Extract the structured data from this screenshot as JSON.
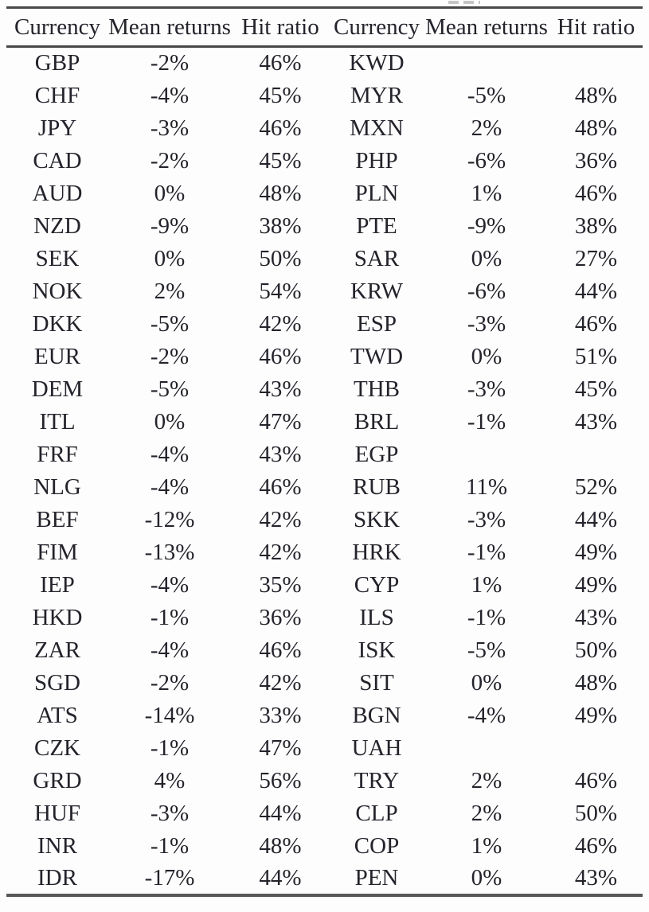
{
  "document": {
    "kind": "scanned-paper-table"
  },
  "colors": {
    "background": "#fdfdfd",
    "text": "#23232b",
    "rule": "#474747"
  },
  "table": {
    "headers": [
      "Currency",
      "Mean returns",
      "Hit ratio",
      "Currency",
      "Mean returns",
      "Hit ratio"
    ],
    "rows": [
      [
        "GBP",
        "-2%",
        "46%",
        "KWD",
        "",
        ""
      ],
      [
        "CHF",
        "-4%",
        "45%",
        "MYR",
        "-5%",
        "48%"
      ],
      [
        "JPY",
        "-3%",
        "46%",
        "MXN",
        "2%",
        "48%"
      ],
      [
        "CAD",
        "-2%",
        "45%",
        "PHP",
        "-6%",
        "36%"
      ],
      [
        "AUD",
        "0%",
        "48%",
        "PLN",
        "1%",
        "46%"
      ],
      [
        "NZD",
        "-9%",
        "38%",
        "PTE",
        "-9%",
        "38%"
      ],
      [
        "SEK",
        "0%",
        "50%",
        "SAR",
        "0%",
        "27%"
      ],
      [
        "NOK",
        "2%",
        "54%",
        "KRW",
        "-6%",
        "44%"
      ],
      [
        "DKK",
        "-5%",
        "42%",
        "ESP",
        "-3%",
        "46%"
      ],
      [
        "EUR",
        "-2%",
        "46%",
        "TWD",
        "0%",
        "51%"
      ],
      [
        "DEM",
        "-5%",
        "43%",
        "THB",
        "-3%",
        "45%"
      ],
      [
        "ITL",
        "0%",
        "47%",
        "BRL",
        "-1%",
        "43%"
      ],
      [
        "FRF",
        "-4%",
        "43%",
        "EGP",
        "",
        ""
      ],
      [
        "NLG",
        "-4%",
        "46%",
        "RUB",
        "11%",
        "52%"
      ],
      [
        "BEF",
        "-12%",
        "42%",
        "SKK",
        "-3%",
        "44%"
      ],
      [
        "FIM",
        "-13%",
        "42%",
        "HRK",
        "-1%",
        "49%"
      ],
      [
        "IEP",
        "-4%",
        "35%",
        "CYP",
        "1%",
        "49%"
      ],
      [
        "HKD",
        "-1%",
        "36%",
        "ILS",
        "-1%",
        "43%"
      ],
      [
        "ZAR",
        "-4%",
        "46%",
        "ISK",
        "-5%",
        "50%"
      ],
      [
        "SGD",
        "-2%",
        "42%",
        "SIT",
        "0%",
        "48%"
      ],
      [
        "ATS",
        "-14%",
        "33%",
        "BGN",
        "-4%",
        "49%"
      ],
      [
        "CZK",
        "-1%",
        "47%",
        "UAH",
        "",
        ""
      ],
      [
        "GRD",
        "4%",
        "56%",
        "TRY",
        "2%",
        "46%"
      ],
      [
        "HUF",
        "-3%",
        "44%",
        "CLP",
        "2%",
        "50%"
      ],
      [
        "INR",
        "-1%",
        "48%",
        "COP",
        "1%",
        "46%"
      ],
      [
        "IDR",
        "-17%",
        "44%",
        "PEN",
        "0%",
        "43%"
      ]
    ]
  }
}
